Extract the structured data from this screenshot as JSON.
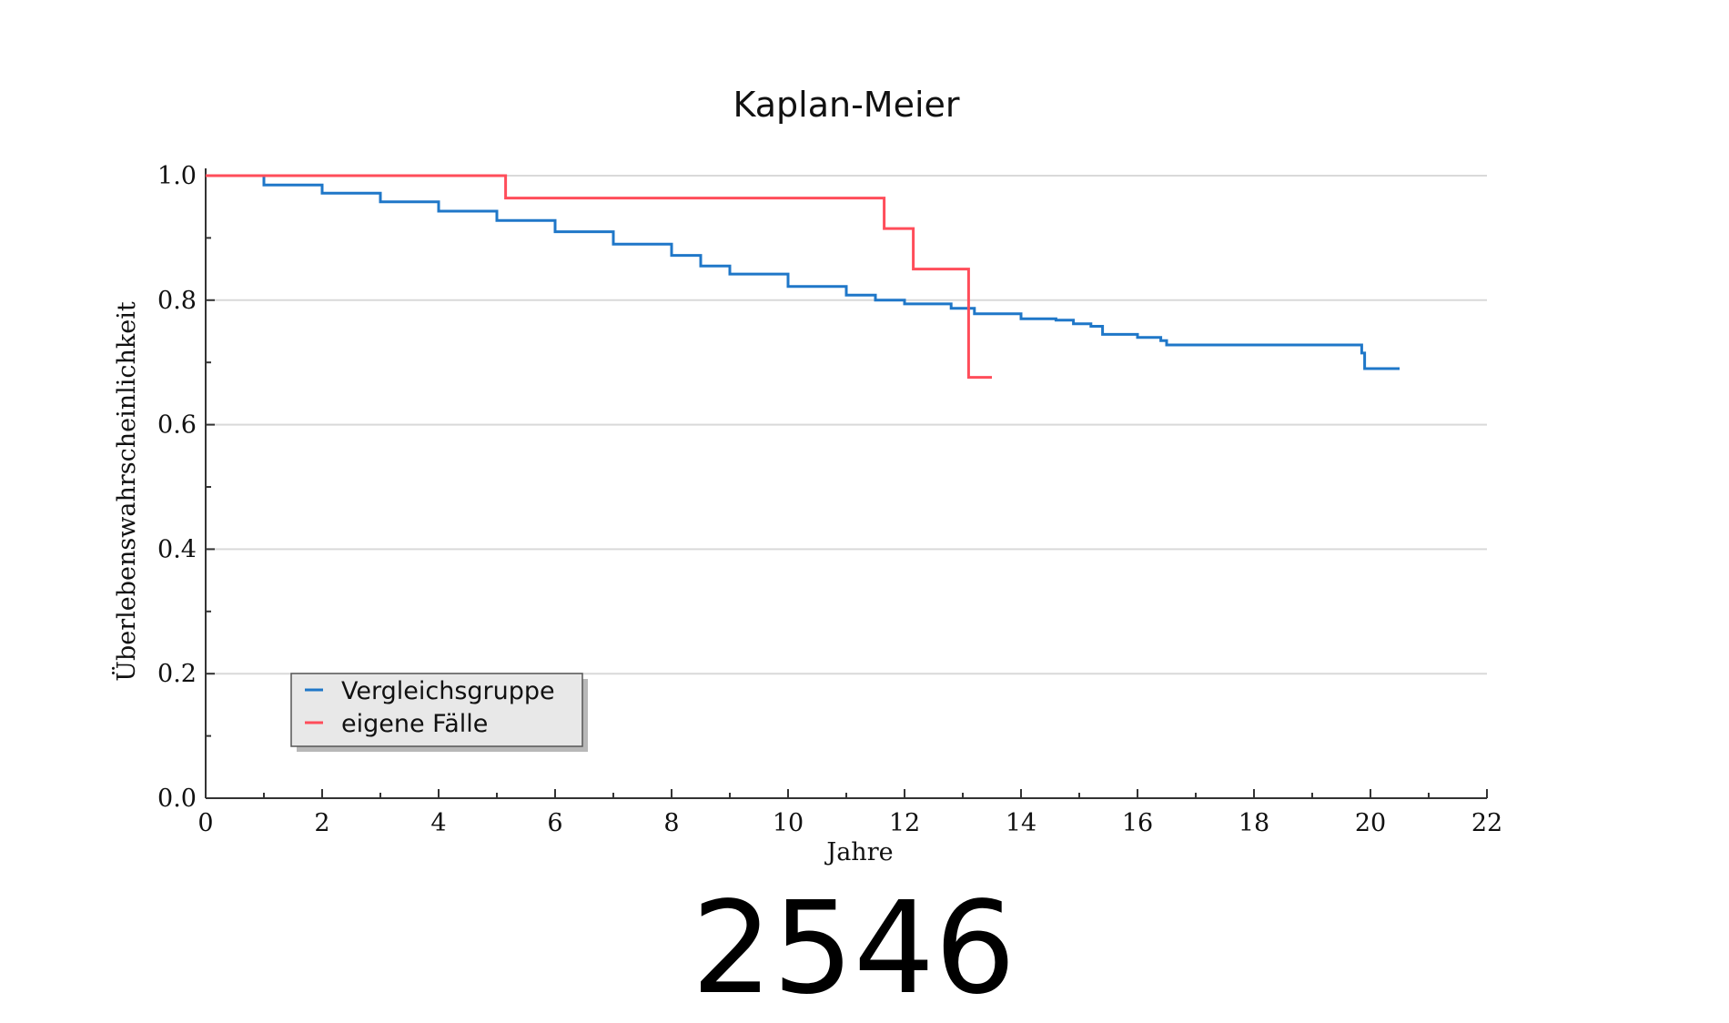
{
  "chart_data": {
    "type": "line",
    "step": true,
    "title": "Kaplan-Meier",
    "xlabel": "Jahre",
    "ylabel": "Überlebenswahrscheinlichkeit",
    "xlim": [
      0,
      22
    ],
    "ylim": [
      0,
      1
    ],
    "x_ticks": [
      "0",
      "2",
      "4",
      "6",
      "8",
      "10",
      "12",
      "14",
      "16",
      "18",
      "20",
      "22"
    ],
    "y_ticks": [
      "0.0",
      "0.2",
      "0.4",
      "0.6",
      "0.8",
      "1.0"
    ],
    "grid": "horizontal",
    "legend_position": "bottom-left",
    "series": [
      {
        "name": "Vergleichsgruppe",
        "color": "#1f77c8",
        "points": [
          [
            0,
            1.0
          ],
          [
            1,
            0.985
          ],
          [
            2,
            0.972
          ],
          [
            3,
            0.958
          ],
          [
            4,
            0.943
          ],
          [
            5,
            0.928
          ],
          [
            6,
            0.91
          ],
          [
            7,
            0.89
          ],
          [
            8,
            0.872
          ],
          [
            8.5,
            0.855
          ],
          [
            9,
            0.842
          ],
          [
            10,
            0.822
          ],
          [
            11,
            0.808
          ],
          [
            11.5,
            0.8
          ],
          [
            12,
            0.794
          ],
          [
            12.8,
            0.787
          ],
          [
            13.2,
            0.778
          ],
          [
            14,
            0.77
          ],
          [
            14.6,
            0.768
          ],
          [
            14.9,
            0.762
          ],
          [
            15.2,
            0.758
          ],
          [
            15.4,
            0.745
          ],
          [
            16,
            0.74
          ],
          [
            16.4,
            0.735
          ],
          [
            16.5,
            0.728
          ],
          [
            18,
            0.728
          ],
          [
            19.5,
            0.728
          ],
          [
            19.8,
            0.728
          ],
          [
            19.85,
            0.715
          ],
          [
            19.9,
            0.69
          ],
          [
            20.5,
            0.69
          ]
        ]
      },
      {
        "name": "eigene Fälle",
        "color": "#ff4d5a",
        "points": [
          [
            0,
            1.0
          ],
          [
            5.15,
            1.0
          ],
          [
            5.15,
            0.964
          ],
          [
            11.65,
            0.964
          ],
          [
            11.65,
            0.915
          ],
          [
            12.15,
            0.915
          ],
          [
            12.15,
            0.85
          ],
          [
            13.1,
            0.85
          ],
          [
            13.1,
            0.676
          ],
          [
            13.5,
            0.676
          ]
        ]
      }
    ]
  },
  "figure_number": "2546"
}
